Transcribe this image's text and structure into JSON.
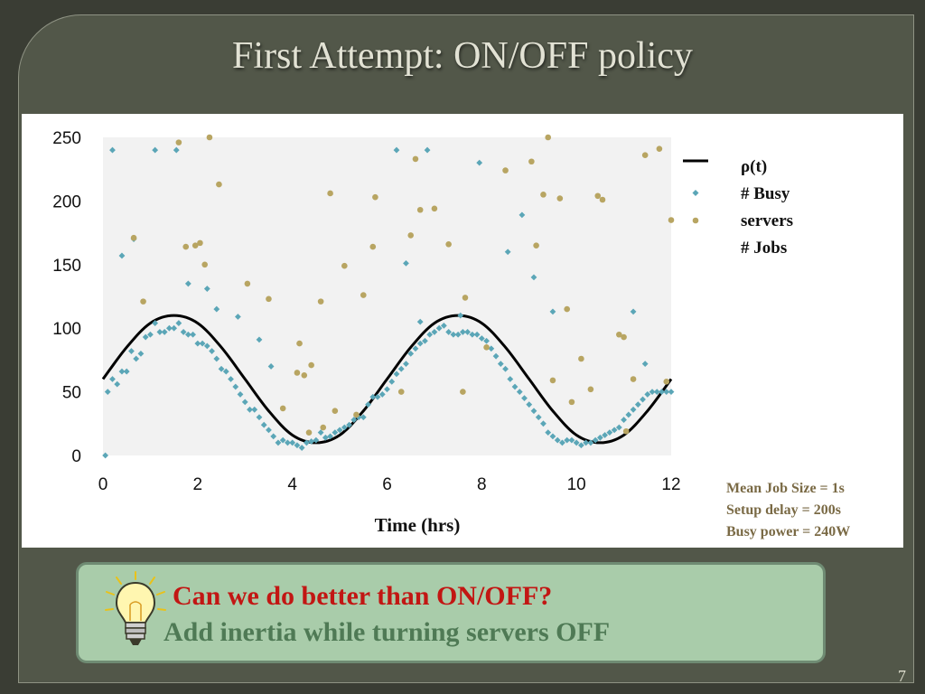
{
  "slide": {
    "title": "First Attempt: ON/OFF policy",
    "page_number": "7"
  },
  "legend": {
    "rho": "ρ(t)",
    "busy_line1": "# Busy",
    "busy_line2": "servers",
    "jobs": "# Jobs"
  },
  "params": {
    "job_size": "Mean Job Size = 1s",
    "setup_delay": "Setup delay = 200s",
    "busy_power": "Busy power = 240W"
  },
  "callout": {
    "question": "Can we do better than ON/OFF?",
    "answer": "Add inertia while turning servers OFF"
  },
  "colors": {
    "background": "#525749",
    "rho_line": "#000000",
    "busy_servers": "#5ba6b7",
    "jobs": "#b8a562",
    "plot_area": "#f2f2f2",
    "question": "#c21613",
    "answer": "#4f7a55",
    "callout_bg": "#a9ccaa"
  },
  "icons": {
    "bulb": "lightbulb-icon"
  },
  "chart_data": {
    "type": "scatter",
    "xlabel": "Time (hrs)",
    "ylabel": "",
    "xlim": [
      0,
      12
    ],
    "ylim": [
      0,
      250
    ],
    "xticks": [
      0,
      2,
      4,
      6,
      8,
      10,
      12
    ],
    "yticks": [
      0,
      50,
      100,
      150,
      200,
      250
    ],
    "plot_background": "light gray",
    "legend_position": "right",
    "series": [
      {
        "name": "ρ(t)",
        "kind": "line",
        "x": [
          0,
          0.5,
          1,
          1.5,
          2,
          2.5,
          3,
          3.5,
          4,
          4.5,
          5,
          5.5,
          6,
          6.5,
          7,
          7.5,
          8,
          8.5,
          9,
          9.5,
          10,
          10.5,
          11,
          11.5,
          12
        ],
        "y": [
          60,
          85,
          104,
          110,
          104,
          85,
          60,
          35,
          16,
          10,
          16,
          35,
          60,
          85,
          104,
          110,
          104,
          85,
          60,
          35,
          16,
          10,
          16,
          35,
          60
        ]
      },
      {
        "name": "# Busy servers",
        "kind": "scatter",
        "x": [
          0.05,
          0.1,
          0.2,
          0.3,
          0.4,
          0.5,
          0.6,
          0.7,
          0.8,
          0.9,
          1.0,
          1.1,
          1.2,
          1.3,
          1.4,
          1.5,
          1.6,
          1.7,
          1.8,
          1.9,
          2.0,
          2.1,
          2.2,
          2.3,
          2.4,
          2.5,
          2.6,
          2.7,
          2.8,
          2.9,
          3.0,
          3.1,
          3.2,
          3.3,
          3.4,
          3.5,
          3.6,
          3.7,
          3.8,
          3.9,
          4.0,
          4.1,
          4.2,
          4.3,
          4.4,
          4.5,
          4.6,
          4.7,
          4.8,
          4.9,
          5.0,
          5.1,
          5.2,
          5.3,
          5.4,
          5.5,
          5.6,
          5.7,
          5.8,
          5.9,
          6.0,
          6.1,
          6.2,
          6.3,
          6.4,
          6.5,
          6.6,
          6.7,
          6.8,
          6.9,
          7.0,
          7.1,
          7.2,
          7.3,
          7.4,
          7.5,
          7.6,
          7.7,
          7.8,
          7.9,
          8.0,
          8.1,
          8.2,
          8.3,
          8.4,
          8.5,
          8.6,
          8.7,
          8.8,
          8.9,
          9.0,
          9.1,
          9.2,
          9.3,
          9.4,
          9.5,
          9.6,
          9.7,
          9.8,
          9.9,
          10.0,
          10.1,
          10.2,
          10.3,
          10.4,
          10.5,
          10.6,
          10.7,
          10.8,
          10.9,
          11.0,
          11.1,
          11.2,
          11.3,
          11.4,
          11.5,
          11.6,
          11.7,
          11.8,
          11.9,
          12.0,
          0.2,
          0.4,
          0.65,
          1.1,
          1.55,
          1.8,
          2.2,
          2.4,
          2.85,
          3.3,
          3.55,
          6.2,
          6.4,
          6.7,
          6.85,
          7.55,
          7.95,
          8.55,
          8.85,
          9.1,
          9.5,
          11.2,
          11.45
        ],
        "y": [
          0,
          50,
          60,
          56,
          66,
          66,
          82,
          76,
          80,
          93,
          95,
          104,
          97,
          97,
          100,
          100,
          104,
          97,
          95,
          95,
          88,
          88,
          86,
          82,
          76,
          68,
          66,
          60,
          54,
          48,
          42,
          36,
          36,
          30,
          24,
          20,
          15,
          10,
          12,
          10,
          10,
          8,
          6,
          10,
          11,
          12,
          18,
          14,
          15,
          18,
          20,
          22,
          24,
          28,
          30,
          30,
          40,
          46,
          46,
          48,
          52,
          58,
          64,
          68,
          72,
          80,
          84,
          88,
          90,
          95,
          97,
          100,
          102,
          97,
          95,
          95,
          97,
          97,
          95,
          95,
          92,
          90,
          84,
          78,
          72,
          68,
          60,
          54,
          50,
          45,
          40,
          35,
          30,
          25,
          18,
          15,
          12,
          10,
          12,
          12,
          10,
          8,
          10,
          10,
          12,
          14,
          16,
          18,
          20,
          22,
          28,
          32,
          36,
          40,
          44,
          48,
          50,
          50,
          50,
          50,
          50,
          240,
          157,
          170,
          240,
          240,
          135,
          131,
          115,
          109,
          91,
          70,
          240,
          151,
          105,
          240,
          110,
          230,
          160,
          189,
          140,
          113,
          113,
          72
        ]
      },
      {
        "name": "# Jobs",
        "kind": "scatter",
        "x": [
          0.65,
          0.85,
          1.6,
          1.75,
          1.95,
          2.05,
          2.15,
          2.25,
          2.45,
          3.05,
          3.5,
          3.8,
          4.1,
          4.15,
          4.25,
          4.35,
          4.4,
          4.6,
          4.65,
          4.8,
          4.9,
          5.1,
          5.35,
          5.5,
          5.7,
          5.75,
          6.3,
          6.5,
          6.6,
          6.7,
          7.0,
          7.3,
          7.6,
          7.65,
          8.1,
          8.5,
          9.05,
          9.15,
          9.3,
          9.4,
          9.5,
          9.65,
          9.8,
          9.9,
          10.1,
          10.3,
          10.45,
          10.55,
          10.9,
          11.0,
          11.05,
          11.2,
          11.45,
          11.75,
          11.9,
          12.0
        ],
        "y": [
          171,
          121,
          246,
          164,
          165,
          167,
          150,
          250,
          213,
          135,
          123,
          37,
          65,
          88,
          63,
          18,
          71,
          121,
          22,
          206,
          35,
          149,
          32,
          126,
          164,
          203,
          50,
          173,
          233,
          193,
          194,
          166,
          50,
          124,
          85,
          224,
          231,
          165,
          205,
          250,
          59,
          202,
          115,
          42,
          76,
          52,
          204,
          201,
          95,
          93,
          19,
          60,
          236,
          241,
          58,
          185
        ]
      }
    ]
  }
}
